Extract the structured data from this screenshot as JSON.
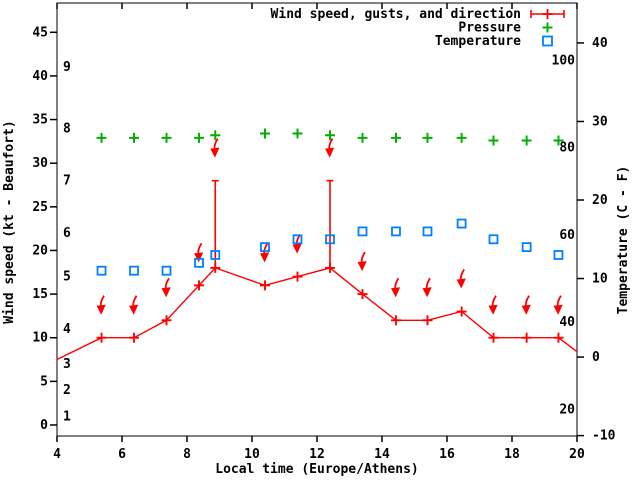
{
  "chart_data": {
    "type": "line",
    "title": "",
    "xlabel": "Local time (Europe/Athens)",
    "ylabel_left": "Wind speed (kt - Beaufort)",
    "ylabel_right": "Temperature (C - F)",
    "x_range": [
      4,
      20
    ],
    "x_ticks": [
      "4",
      "6",
      "8",
      "10",
      "12",
      "14",
      "16",
      "18",
      "20"
    ],
    "left_axis_kt_ticks": [
      0,
      5,
      10,
      15,
      20,
      25,
      30,
      35,
      40,
      45
    ],
    "beaufort_labels": [
      {
        "b": "1",
        "kt": 1
      },
      {
        "b": "2",
        "kt": 4
      },
      {
        "b": "3",
        "kt": 7
      },
      {
        "b": "4",
        "kt": 11
      },
      {
        "b": "5",
        "kt": 17
      },
      {
        "b": "6",
        "kt": 22
      },
      {
        "b": "7",
        "kt": 28
      },
      {
        "b": "8",
        "kt": 34
      },
      {
        "b": "9",
        "kt": 41
      }
    ],
    "right_axis_c_ticks": [
      -10,
      0,
      10,
      20,
      30,
      40
    ],
    "fahrenheit_labels": [
      20,
      40,
      60,
      80,
      100
    ],
    "legend": [
      {
        "label": "Wind speed, gusts, and direction",
        "symbol": "errorbar",
        "color": "#ff0000"
      },
      {
        "label": "Pressure",
        "symbol": "plus",
        "color": "#00b000"
      },
      {
        "label": "Temperature",
        "symbol": "open-square",
        "color": "#0080ff"
      }
    ],
    "legend_position": "top-right-inside",
    "grid": false,
    "x": [
      5.37,
      6.37,
      7.37,
      8.37,
      8.87,
      10.4,
      11.4,
      12.4,
      13.4,
      14.43,
      15.4,
      16.45,
      17.43,
      18.45,
      19.43
    ],
    "series": [
      {
        "name": "wind_speed_kt",
        "values": [
          10,
          10,
          12,
          16,
          18,
          16,
          17,
          18,
          15,
          12,
          12,
          13,
          10,
          10,
          10
        ]
      },
      {
        "name": "wind_gust_kt",
        "values": [
          null,
          null,
          null,
          null,
          28,
          null,
          null,
          28,
          null,
          null,
          null,
          null,
          null,
          null,
          null
        ]
      },
      {
        "name": "wind_direction_arrow",
        "values": [
          "down",
          "down",
          "down",
          "down",
          "down",
          "down",
          "down",
          "down",
          "down",
          "down",
          "down",
          "down",
          "down",
          "down",
          "down"
        ]
      },
      {
        "name": "pressure_plotted_on_kt_axis",
        "note": "no numeric pressure scale visible in image",
        "values": [
          32.9,
          32.9,
          32.9,
          32.9,
          33.2,
          33.4,
          33.4,
          33.2,
          32.9,
          32.9,
          32.9,
          32.9,
          32.6,
          32.6,
          32.6
        ]
      },
      {
        "name": "temperature_c",
        "values": [
          11,
          11,
          11,
          12,
          13,
          14,
          15,
          15,
          16,
          16,
          16,
          17,
          15,
          14,
          13
        ]
      }
    ],
    "line_edges": {
      "start": {
        "t": 4.0,
        "kt": 7.5
      },
      "end": {
        "t": 20.0,
        "kt": 8.4
      }
    },
    "colors": {
      "wind": "#ff0000",
      "pressure": "#00b000",
      "temperature": "#0080ff",
      "axis": "#000000",
      "background": "#ffffff"
    }
  }
}
